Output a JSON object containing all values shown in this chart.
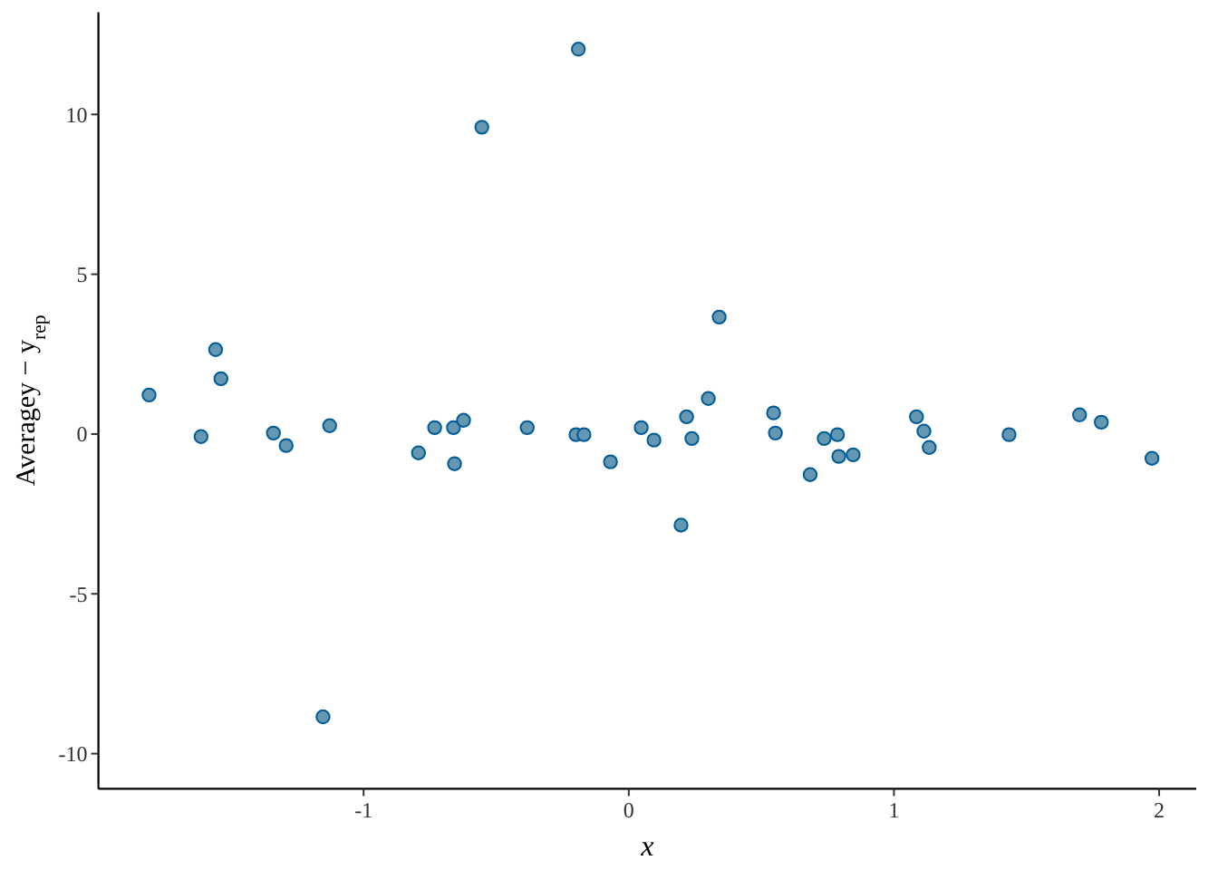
{
  "chart_data": {
    "type": "scatter",
    "xlabel": "x",
    "ylabel": "Averagey − y$_{rep}$",
    "x": [
      -1.809,
      -1.613,
      -1.558,
      -1.538,
      -1.34,
      -1.292,
      -1.153,
      -1.128,
      -0.793,
      -0.732,
      -0.661,
      -0.657,
      -0.623,
      -0.554,
      -0.383,
      -0.199,
      -0.19,
      -0.169,
      -0.069,
      0.047,
      0.095,
      0.197,
      0.218,
      0.238,
      0.3,
      0.341,
      0.546,
      0.553,
      0.684,
      0.737,
      0.787,
      0.792,
      0.846,
      1.085,
      1.113,
      1.133,
      1.434,
      1.7,
      1.782,
      1.973
    ],
    "series": [
      {
        "color": "#6497b1",
        "values": [
          1.22,
          -0.08,
          2.64,
          1.73,
          0.03,
          -0.36,
          -8.85,
          0.26,
          -0.59,
          0.2,
          0.2,
          -0.93,
          0.43,
          9.6,
          0.2,
          -0.02,
          12.04,
          -0.02,
          -0.87,
          0.2,
          -0.19,
          -2.85,
          0.54,
          -0.14,
          1.11,
          3.66,
          0.66,
          0.03,
          -1.27,
          -0.14,
          -0.02,
          -0.7,
          -0.65,
          0.54,
          0.09,
          -0.42,
          -0.02,
          0.6,
          0.37,
          -0.76
        ]
      }
    ],
    "xlim": [
      -2.0,
      2.14
    ],
    "ylim": [
      -11.1,
      13.2
    ],
    "xticks": [
      -1,
      0,
      1,
      2
    ],
    "yticks": [
      -10,
      -5,
      0,
      5,
      10
    ],
    "grid": false,
    "marker": "circle"
  }
}
